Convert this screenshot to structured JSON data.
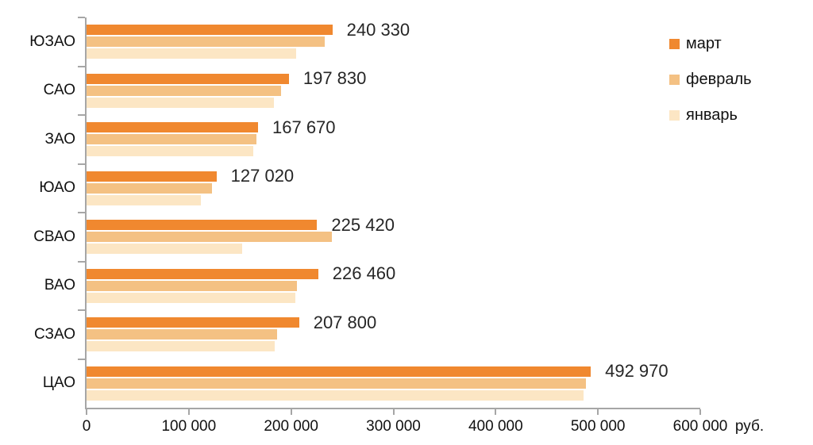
{
  "chart_data": {
    "type": "bar",
    "orientation": "horizontal",
    "title": "",
    "categories": [
      "ЮЗАО",
      "САО",
      "ЗАО",
      "ЮАО",
      "СВАО",
      "ВАО",
      "СЗАО",
      "ЦАО"
    ],
    "series": [
      {
        "name": "март",
        "color": "#F0882F",
        "values": [
          240330,
          197830,
          167670,
          127020,
          225420,
          226460,
          207800,
          492970
        ],
        "labels": [
          "240 330",
          "197 830",
          "167 670",
          "127 020",
          "225 420",
          "226 460",
          "207 800",
          "492 970"
        ]
      },
      {
        "name": "февраль",
        "color": "#F4C183",
        "values": [
          233000,
          190000,
          166000,
          123000,
          240000,
          206000,
          186000,
          488000
        ]
      },
      {
        "name": "январь",
        "color": "#FCE6C4",
        "values": [
          205000,
          183000,
          163000,
          112000,
          152000,
          204000,
          184000,
          486000
        ]
      }
    ],
    "xlim": [
      0,
      600000
    ],
    "x_ticks": [
      "0",
      "100 000",
      "200 000",
      "300 000",
      "400 000",
      "500 000",
      "600 000"
    ],
    "x_axis_unit": "руб.",
    "legend_position": "top-right",
    "grid": false,
    "axis_color": "#a6a6a6",
    "background": "#ffffff"
  }
}
